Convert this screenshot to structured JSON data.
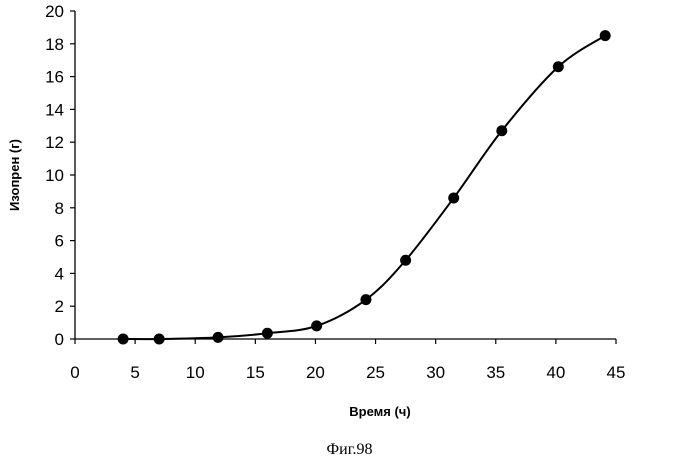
{
  "chart_data": {
    "type": "line",
    "xlabel": "Время (ч)",
    "ylabel": "Изопрен (г)",
    "xlim": [
      0,
      45
    ],
    "ylim": [
      0,
      20
    ],
    "x_ticks": [
      0,
      5,
      10,
      15,
      20,
      25,
      30,
      35,
      40,
      45
    ],
    "y_ticks": [
      0,
      2,
      4,
      6,
      8,
      10,
      12,
      14,
      16,
      18,
      20
    ],
    "grid": false,
    "legend": "none",
    "series": [
      {
        "x": [
          4,
          7,
          11.9,
          16,
          20.1,
          24.2,
          27.5,
          31.5,
          35.5,
          40.2,
          44.1
        ],
        "y": [
          0,
          0,
          0.1,
          0.35,
          0.8,
          2.4,
          4.8,
          8.6,
          12.7,
          16.6,
          18.5
        ],
        "color": "#000000",
        "marker": "circle",
        "smooth": true
      }
    ]
  },
  "figure_caption": "Фиг.98"
}
